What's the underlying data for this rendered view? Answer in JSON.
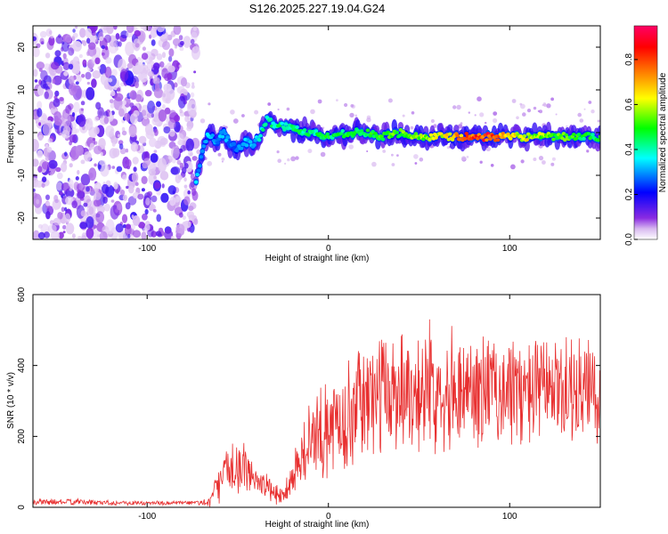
{
  "chart_data": [
    {
      "type": "heatmap",
      "title": "S126.2025.227.19.04.G24",
      "xlabel": "Height of straight line (km)",
      "ylabel": "Frequency (Hz)",
      "xlim": [
        -163,
        150
      ],
      "ylim": [
        -25,
        25
      ],
      "xticks": [
        -100,
        0,
        100
      ],
      "xtick_labels": [
        "-100",
        "0",
        "100"
      ],
      "yticks": [
        -20,
        -10,
        0,
        10,
        20
      ],
      "ytick_labels": [
        "-20",
        "-10",
        "0",
        "10",
        "20"
      ],
      "colorbar": {
        "label": "Normalized spectral amplitude",
        "range": [
          0.0,
          0.95
        ],
        "ticks": [
          0.0,
          0.2,
          0.4,
          0.6,
          0.8
        ],
        "tick_labels": [
          "0.0",
          "0.2",
          "0.4",
          "0.6",
          "0.8"
        ],
        "colors": [
          "#ffffff",
          "#8a2be2",
          "#0000ff",
          "#00ffff",
          "#00ff00",
          "#ffff00",
          "#ff8000",
          "#ff0000",
          "#ff0066"
        ]
      },
      "noise_region_x": [
        -163,
        -73
      ],
      "signal_track": {
        "x": [
          -73,
          -70,
          -66,
          -62,
          -58,
          -54,
          -50,
          -46,
          -42,
          -38,
          -34,
          -30,
          -20,
          -10,
          0,
          10,
          20,
          30,
          40,
          50,
          60,
          70,
          80,
          90,
          100,
          110,
          120,
          130,
          140,
          150
        ],
        "freq": [
          -12,
          -5,
          0,
          -2,
          0,
          -3,
          -4,
          -2,
          -3,
          -1,
          3,
          2,
          1,
          0,
          -1,
          0,
          0,
          -1,
          0,
          -1,
          -1,
          -1,
          -1,
          -1,
          -1,
          -1,
          -1,
          -1,
          -1,
          -1
        ],
        "amplitude": [
          0.35,
          0.3,
          0.35,
          0.3,
          0.35,
          0.3,
          0.3,
          0.35,
          0.35,
          0.4,
          0.45,
          0.45,
          0.45,
          0.45,
          0.5,
          0.5,
          0.5,
          0.55,
          0.55,
          0.6,
          0.65,
          0.75,
          0.85,
          0.9,
          0.7,
          0.65,
          0.6,
          0.55,
          0.5,
          0.5
        ]
      }
    },
    {
      "type": "line",
      "xlabel": "Height of straight line (km)",
      "ylabel": "SNR (10 * v/v)",
      "xlim": [
        -163,
        150
      ],
      "ylim": [
        0,
        600
      ],
      "xticks": [
        -100,
        0,
        100
      ],
      "xtick_labels": [
        "-100",
        "0",
        "100"
      ],
      "yticks": [
        0,
        200,
        400,
        600
      ],
      "ytick_labels": [
        "0",
        "200",
        "400",
        "600"
      ],
      "series": [
        {
          "name": "SNR",
          "color": "#e83030",
          "x": [
            -163,
            -140,
            -120,
            -100,
            -80,
            -70,
            -65,
            -60,
            -55,
            -50,
            -45,
            -40,
            -35,
            -30,
            -25,
            -20,
            -15,
            -10,
            -5,
            0,
            10,
            20,
            30,
            40,
            50,
            60,
            70,
            80,
            90,
            100,
            110,
            120,
            130,
            140,
            150
          ],
          "mean": [
            15,
            15,
            13,
            12,
            12,
            13,
            20,
            70,
            110,
            120,
            100,
            80,
            60,
            40,
            30,
            90,
            140,
            180,
            200,
            220,
            260,
            300,
            320,
            340,
            330,
            340,
            340,
            330,
            330,
            330,
            320,
            330,
            330,
            320,
            320
          ],
          "spread": [
            8,
            8,
            7,
            6,
            6,
            8,
            20,
            50,
            70,
            70,
            60,
            50,
            40,
            30,
            30,
            60,
            90,
            110,
            120,
            130,
            140,
            150,
            160,
            170,
            170,
            160,
            160,
            160,
            150,
            150,
            150,
            140,
            140,
            150,
            150
          ]
        }
      ]
    }
  ]
}
